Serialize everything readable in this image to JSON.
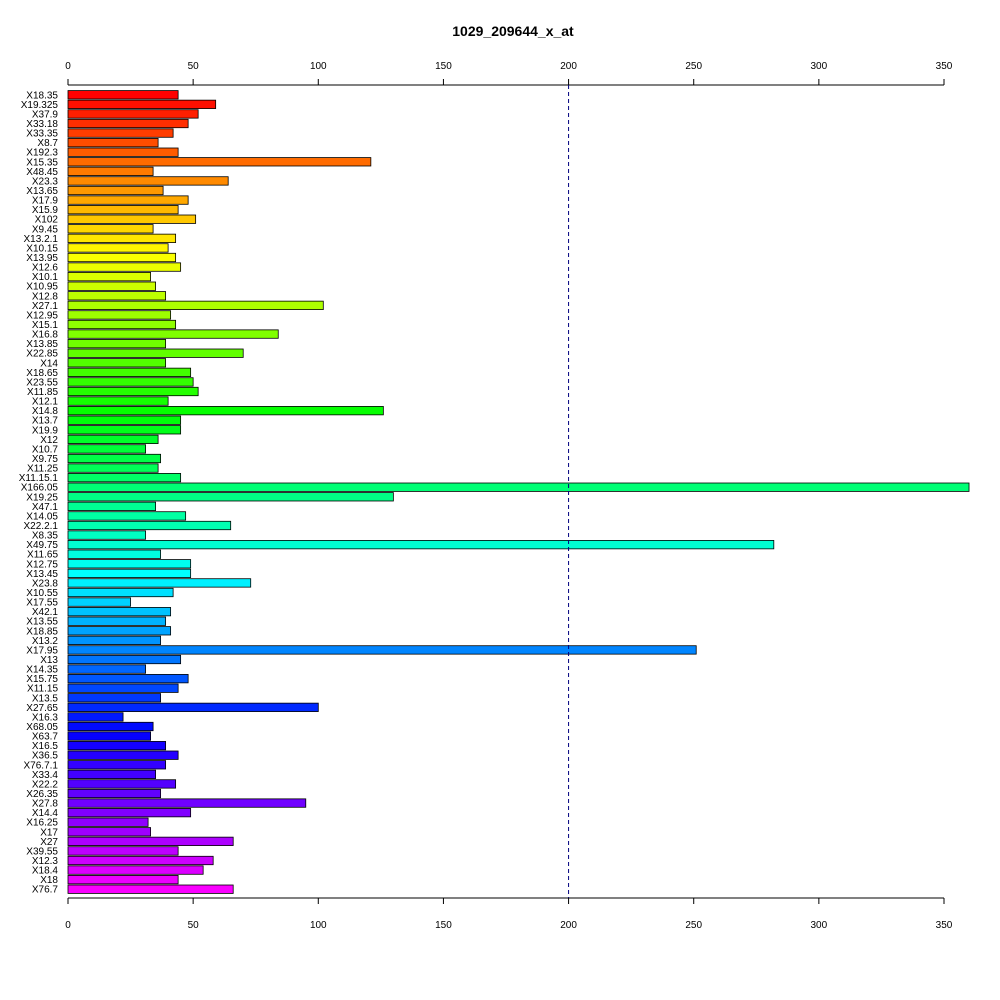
{
  "chart_data": {
    "type": "bar",
    "orientation": "horizontal",
    "title": "1029_209644_x_at",
    "xlabel": "",
    "ylabel": "",
    "xlim": [
      0,
      350
    ],
    "x_ticks": [
      0,
      50,
      100,
      150,
      200,
      250,
      300,
      350
    ],
    "axes_positions": [
      "top",
      "bottom"
    ],
    "reference_line": {
      "x": 200,
      "style": "dashed",
      "color": "#000080"
    },
    "grid": false,
    "legend": "none",
    "color_scheme": "rainbow",
    "categories": [
      "X18.35",
      "X19.325",
      "X37.9",
      "X33.18",
      "X33.35",
      "X8.7",
      "X192.3",
      "X15.35",
      "X48.45",
      "X23.3",
      "X13.65",
      "X17.9",
      "X15.9",
      "X102",
      "X9.45",
      "X13.2.1",
      "X10.15",
      "X13.95",
      "X12.6",
      "X10.1",
      "X10.95",
      "X12.8",
      "X27.1",
      "X12.95",
      "X15.1",
      "X16.8",
      "X13.85",
      "X22.85",
      "X14",
      "X18.65",
      "X23.55",
      "X11.85",
      "X12.1",
      "X14.8",
      "X13.7",
      "X19.9",
      "X12",
      "X10.7",
      "X9.75",
      "X11.25",
      "X11.15.1",
      "X166.05",
      "X19.25",
      "X47.1",
      "X14.05",
      "X22.2.1",
      "X8.35",
      "X49.75",
      "X11.65",
      "X12.75",
      "X13.45",
      "X23.8",
      "X10.55",
      "X17.55",
      "X42.1",
      "X13.55",
      "X18.85",
      "X13.2",
      "X17.95",
      "X13",
      "X14.35",
      "X15.75",
      "X11.15",
      "X13.5",
      "X27.65",
      "X16.3",
      "X68.05",
      "X63.7",
      "X16.5",
      "X36.5",
      "X76.7.1",
      "X33.4",
      "X22.2",
      "X26.35",
      "X27.8",
      "X14.4",
      "X16.25",
      "X17",
      "X27",
      "X39.55",
      "X12.3",
      "X18.4",
      "X18",
      "X76.7"
    ],
    "values": [
      44,
      59,
      52,
      48,
      42,
      36,
      44,
      121,
      34,
      64,
      38,
      48,
      44,
      51,
      34,
      43,
      40,
      43,
      45,
      33,
      35,
      39,
      102,
      41,
      43,
      84,
      39,
      70,
      39,
      49,
      50,
      52,
      40,
      126,
      45,
      45,
      36,
      31,
      37,
      36,
      45,
      360,
      130,
      35,
      47,
      65,
      31,
      282,
      37,
      49,
      49,
      73,
      42,
      25,
      41,
      39,
      41,
      37,
      251,
      45,
      31,
      48,
      44,
      37,
      100,
      22,
      34,
      33,
      39,
      44,
      39,
      35,
      43,
      37,
      95,
      49,
      32,
      33,
      66,
      44,
      58,
      54,
      44,
      66
    ]
  }
}
